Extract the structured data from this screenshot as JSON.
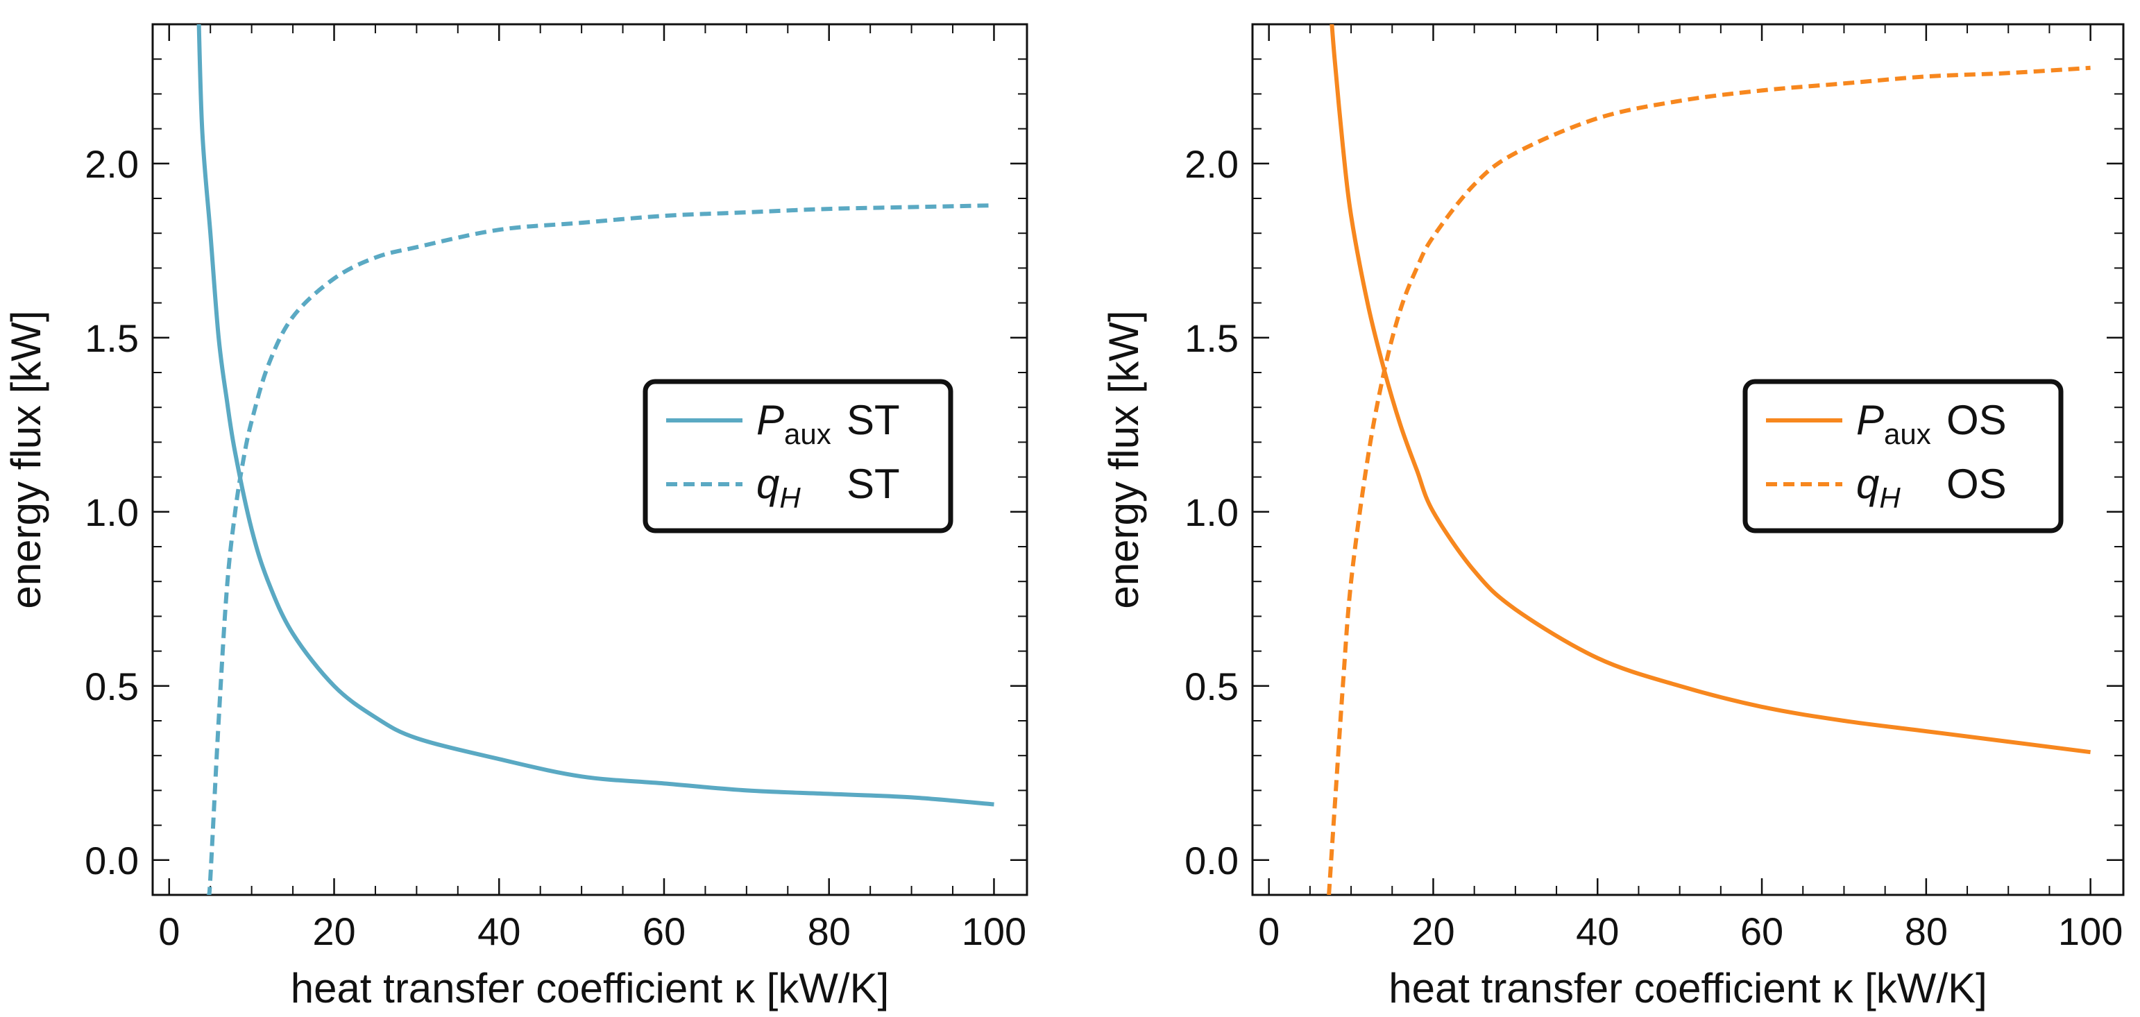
{
  "chart_data": [
    {
      "type": "line",
      "xlabel": "heat transfer coefficient κ [kW/K]",
      "ylabel": "energy flux [kW]",
      "xlim": [
        -2,
        104
      ],
      "ylim": [
        -0.1,
        2.4
      ],
      "xticks": [
        0,
        20,
        40,
        60,
        80,
        100
      ],
      "yticks": [
        0.0,
        0.5,
        1.0,
        1.5,
        2.0
      ],
      "ytick_labels": [
        "0.0",
        "0.5",
        "1.0",
        "1.5",
        "2.0"
      ],
      "grid": false,
      "legend_position": "middle-right",
      "color": "#5aa9c3",
      "series": [
        {
          "name": "P_aux ST",
          "legend_main": "P",
          "legend_sub": "aux",
          "legend_suffix": "ST",
          "style": "solid",
          "x": [
            3.5,
            4,
            5,
            6,
            7,
            8,
            10,
            12,
            15,
            20,
            25,
            30,
            40,
            50,
            60,
            70,
            80,
            90,
            100
          ],
          "y": [
            2.5,
            2.1,
            1.8,
            1.5,
            1.32,
            1.17,
            0.95,
            0.8,
            0.65,
            0.5,
            0.41,
            0.35,
            0.29,
            0.24,
            0.22,
            0.2,
            0.19,
            0.18,
            0.16
          ]
        },
        {
          "name": "q_H ST",
          "legend_main": "q",
          "legend_sub": "H",
          "legend_suffix": "ST",
          "style": "dashed",
          "x": [
            4.8,
            5,
            6,
            7,
            8,
            9,
            10,
            12,
            15,
            20,
            25,
            30,
            40,
            50,
            60,
            70,
            80,
            90,
            100
          ],
          "y": [
            -0.1,
            -0.05,
            0.4,
            0.78,
            1.0,
            1.15,
            1.26,
            1.42,
            1.56,
            1.67,
            1.73,
            1.76,
            1.81,
            1.83,
            1.85,
            1.86,
            1.87,
            1.875,
            1.88
          ]
        }
      ]
    },
    {
      "type": "line",
      "xlabel": "heat transfer coefficient κ [kW/K]",
      "ylabel": "energy flux [kW]",
      "xlim": [
        -2,
        104
      ],
      "ylim": [
        -0.1,
        2.4
      ],
      "xticks": [
        0,
        20,
        40,
        60,
        80,
        100
      ],
      "yticks": [
        0.0,
        0.5,
        1.0,
        1.5,
        2.0
      ],
      "ytick_labels": [
        "0.0",
        "0.5",
        "1.0",
        "1.5",
        "2.0"
      ],
      "grid": false,
      "legend_position": "middle-right",
      "color": "#f7871e",
      "series": [
        {
          "name": "P_aux OS",
          "legend_main": "P",
          "legend_sub": "aux",
          "legend_suffix": "OS",
          "style": "solid",
          "x": [
            7.5,
            8,
            9,
            10,
            12,
            14,
            16,
            18,
            20,
            25,
            30,
            40,
            50,
            60,
            70,
            80,
            90,
            100
          ],
          "y": [
            2.45,
            2.3,
            2.05,
            1.85,
            1.6,
            1.41,
            1.25,
            1.12,
            1.0,
            0.83,
            0.72,
            0.58,
            0.5,
            0.44,
            0.4,
            0.37,
            0.34,
            0.31
          ]
        },
        {
          "name": "q_H OS",
          "legend_main": "q",
          "legend_sub": "H",
          "legend_suffix": "OS",
          "style": "dashed",
          "x": [
            7.3,
            8,
            9,
            10,
            12,
            14,
            16,
            18,
            20,
            25,
            30,
            40,
            50,
            60,
            70,
            80,
            90,
            100
          ],
          "y": [
            -0.1,
            0.15,
            0.5,
            0.8,
            1.15,
            1.4,
            1.58,
            1.7,
            1.79,
            1.94,
            2.03,
            2.13,
            2.18,
            2.21,
            2.23,
            2.25,
            2.26,
            2.275
          ]
        }
      ]
    }
  ]
}
